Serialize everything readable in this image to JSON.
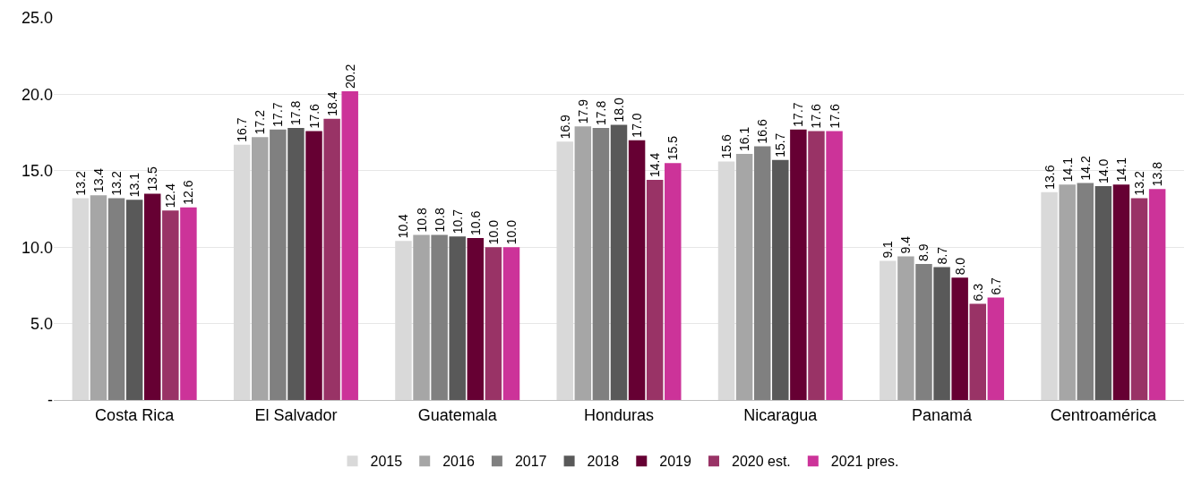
{
  "chart_data": {
    "type": "bar",
    "categories": [
      "Costa Rica",
      "El Salvador",
      "Guatemala",
      "Honduras",
      "Nicaragua",
      "Panamá",
      "Centroamérica"
    ],
    "ylim": [
      0,
      25
    ],
    "yticks": [
      {
        "value": 0,
        "label": "-"
      },
      {
        "value": 5,
        "label": "5.0"
      },
      {
        "value": 10,
        "label": "10.0"
      },
      {
        "value": 15,
        "label": "15.0"
      },
      {
        "value": 20,
        "label": "20.0"
      },
      {
        "value": 25,
        "label": "25.0"
      }
    ],
    "grid": "y",
    "legend": "bottom",
    "series": [
      {
        "name": "2015",
        "color": "#d9d9d9",
        "values": [
          13.2,
          16.7,
          10.4,
          16.9,
          15.6,
          9.1,
          13.6
        ],
        "value_labels": [
          "13.2",
          "16.7",
          "10.4",
          "16.9",
          "15.6",
          "9.1",
          "13.6"
        ]
      },
      {
        "name": "2016",
        "color": "#a6a6a6",
        "values": [
          13.4,
          17.2,
          10.8,
          17.9,
          16.1,
          9.4,
          14.1
        ],
        "value_labels": [
          "13.4",
          "17.2",
          "10.8",
          "17.9",
          "16.1",
          "9.4",
          "14.1"
        ]
      },
      {
        "name": "2017",
        "color": "#808080",
        "values": [
          13.2,
          17.7,
          10.8,
          17.8,
          16.6,
          8.9,
          14.2
        ],
        "value_labels": [
          "13.2",
          "17.7",
          "10.8",
          "17.8",
          "16.6",
          "8.9",
          "14.2"
        ]
      },
      {
        "name": "2018",
        "color": "#595959",
        "values": [
          13.1,
          17.8,
          10.7,
          18.0,
          15.7,
          8.7,
          14.0
        ],
        "value_labels": [
          "13.1",
          "17.8",
          "10.7",
          "18.0",
          "15.7",
          "8.7",
          "14.0"
        ]
      },
      {
        "name": "2019",
        "color": "#660033",
        "values": [
          13.5,
          17.6,
          10.6,
          17.0,
          17.7,
          8.0,
          14.1
        ],
        "value_labels": [
          "13.5",
          "17.6",
          "10.6",
          "17.0",
          "17.7",
          "8.0",
          "14.1"
        ]
      },
      {
        "name": "2020 est.",
        "color": "#993366",
        "values": [
          12.4,
          18.4,
          10.0,
          14.4,
          17.6,
          6.3,
          13.2
        ],
        "value_labels": [
          "12.4",
          "18.4",
          "10.0",
          "14.4",
          "17.6",
          "6.3",
          "13.2"
        ]
      },
      {
        "name": "2021 pres.",
        "color": "#cc3399",
        "values": [
          12.6,
          20.2,
          10.0,
          15.5,
          17.6,
          6.7,
          13.8
        ],
        "value_labels": [
          "12.6",
          "20.2",
          "10.0",
          "15.5",
          "17.6",
          "6.7",
          "13.8"
        ]
      }
    ]
  }
}
